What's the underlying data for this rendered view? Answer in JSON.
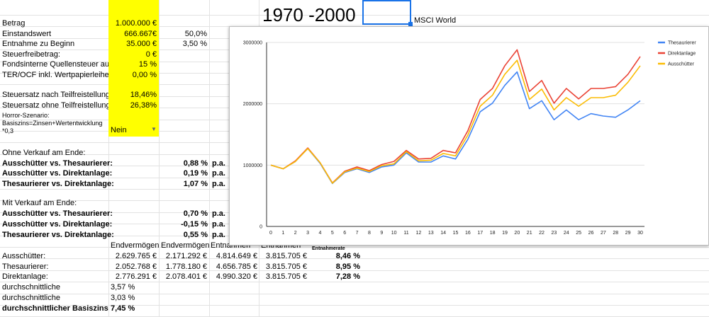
{
  "sheet": {
    "params": [
      {
        "label": "Betrag",
        "value": "1.000.000 €",
        "extra": ""
      },
      {
        "label": "Einstandswert",
        "value": "666.667€",
        "extra": "50,0%"
      },
      {
        "label": "Entnahme zu Beginn",
        "value": "35.000 €",
        "extra": "3,50 %"
      },
      {
        "label": "Steuerfreibetrag:",
        "value": "0 €",
        "extra": ""
      },
      {
        "label": "Fondsinterne Quellensteuer auf",
        "value": "15 %",
        "extra": ""
      },
      {
        "label": "TER/OCF inkl. Wertpapierleihe",
        "value": "0,00 %",
        "extra": ""
      }
    ],
    "tax": [
      {
        "label": "Steuersatz nach Teilfreistellung:",
        "value": "18,46%"
      },
      {
        "label": "Steuersatz ohne Teilfreistellung:",
        "value": "26,38%"
      }
    ],
    "horror": {
      "line1": "Horror-Szenario:",
      "line2": "Basiszins=Zinsen+Wertentwicklung",
      "line3": "*0,3",
      "value": "Nein"
    },
    "ohne": {
      "title": "Ohne Verkauf am Ende:",
      "rows": [
        {
          "label": "Ausschütter vs. Thesaurierer:",
          "value": "0,88 %",
          "unit": "p.a."
        },
        {
          "label": "Ausschütter vs. Direktanlage:",
          "value": "0,19 %",
          "unit": "p.a."
        },
        {
          "label": "Thesaurierer vs. Direktanlage:",
          "value": "1,07 %",
          "unit": "p.a."
        }
      ]
    },
    "mit": {
      "title": "Mit Verkauf am Ende:",
      "rows": [
        {
          "label": "Ausschütter vs. Thesaurierer:",
          "value": "0,70 %",
          "unit": "p.a."
        },
        {
          "label": "Ausschütter vs. Direktanlage:",
          "value": "-0,15 %",
          "unit": "p.a."
        },
        {
          "label": "Thesaurierer vs. Direktanlage:",
          "value": "0,55 %",
          "unit": "p.a."
        }
      ]
    },
    "table": {
      "headers": [
        "Endvermögen",
        "Endvermögen",
        "Entnahmen",
        "Entnahmen",
        "Entnahmerate"
      ],
      "rows": [
        {
          "label": "Ausschütter:",
          "c1": "2.629.765 €",
          "c2": "2.171.292 €",
          "c3": "4.814.649 €",
          "c4": "3.815.705 €",
          "c5": "8,46 %"
        },
        {
          "label": "Thesaurierer:",
          "c1": "2.052.768 €",
          "c2": "1.778.180 €",
          "c3": "4.656.785 €",
          "c4": "3.815.705 €",
          "c5": "8,95 %"
        },
        {
          "label": "Direktanlage:",
          "c1": "2.776.291 €",
          "c2": "2.078.401 €",
          "c3": "4.990.320 €",
          "c4": "3.815.705 €",
          "c5": "7,28 %"
        }
      ]
    },
    "bottom": [
      {
        "label": "durchschnittliche",
        "value": "3,57 %",
        "bold": false
      },
      {
        "label": "durchschnittliche",
        "value": "3,03 %",
        "bold": false
      },
      {
        "label": "durchschnittlicher Basiszins",
        "value": "7,45 %",
        "bold": true
      }
    ],
    "big_title": "1970 -2000",
    "index_label": "MSCI World"
  },
  "colors": {
    "thesaurierer": "#4285f4",
    "direktanlage": "#ea4335",
    "ausschuetter": "#fbbc04",
    "highlight": "#ffff00",
    "selection": "#1a73e8"
  },
  "chart_data": {
    "type": "line",
    "x": [
      0,
      1,
      2,
      3,
      4,
      5,
      6,
      7,
      8,
      9,
      10,
      11,
      12,
      13,
      14,
      15,
      16,
      17,
      18,
      19,
      20,
      21,
      22,
      23,
      24,
      25,
      26,
      27,
      28,
      29,
      30
    ],
    "ylim": [
      0,
      3000000
    ],
    "yticks": [
      "0",
      "1000000",
      "2000000",
      "3000000"
    ],
    "legend_position": "right",
    "grid": true,
    "series": [
      {
        "name": "Thesaurierer",
        "color": "#4285f4",
        "values": [
          1000000,
          940000,
          1060000,
          1270000,
          1030000,
          700000,
          880000,
          940000,
          880000,
          970000,
          1000000,
          1200000,
          1050000,
          1050000,
          1150000,
          1100000,
          1420000,
          1870000,
          2010000,
          2300000,
          2520000,
          1920000,
          2050000,
          1740000,
          1900000,
          1740000,
          1840000,
          1800000,
          1780000,
          1900000,
          2050000
        ]
      },
      {
        "name": "Direktanlage",
        "color": "#ea4335",
        "values": [
          1000000,
          940000,
          1070000,
          1280000,
          1040000,
          710000,
          900000,
          970000,
          910000,
          1010000,
          1060000,
          1240000,
          1100000,
          1110000,
          1240000,
          1200000,
          1560000,
          2070000,
          2250000,
          2620000,
          2880000,
          2200000,
          2380000,
          2010000,
          2250000,
          2080000,
          2250000,
          2250000,
          2280000,
          2480000,
          2770000
        ]
      },
      {
        "name": "Ausschütter",
        "color": "#fbbc04",
        "values": [
          1000000,
          940000,
          1060000,
          1270000,
          1040000,
          705000,
          890000,
          950000,
          895000,
          990000,
          1020000,
          1220000,
          1070000,
          1080000,
          1190000,
          1150000,
          1490000,
          1960000,
          2140000,
          2480000,
          2710000,
          2070000,
          2240000,
          1900000,
          2100000,
          1960000,
          2100000,
          2100000,
          2140000,
          2350000,
          2620000
        ]
      }
    ]
  }
}
